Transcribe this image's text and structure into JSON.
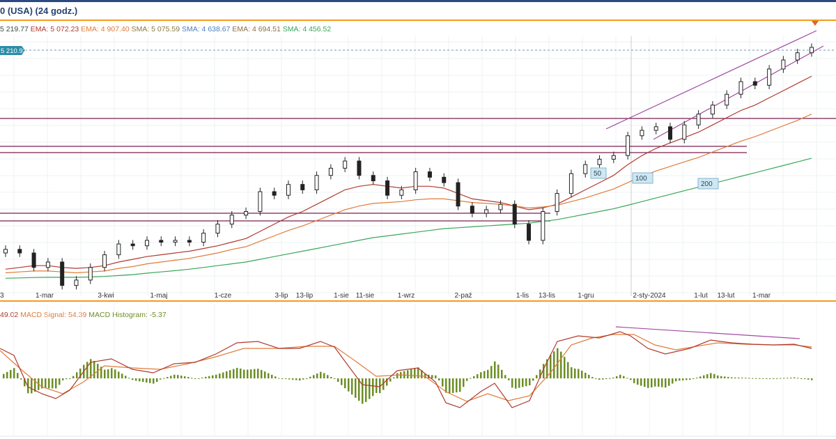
{
  "header": {
    "title": "0 (USA) (24 godz.)"
  },
  "legend": {
    "items": [
      {
        "text": "5 219.77",
        "color": "#3a4a3a"
      },
      {
        "text": "EMA: 5 072.23",
        "color": "#b03a2e"
      },
      {
        "text": "EMA: 4 907.40",
        "color": "#e07b39"
      },
      {
        "text": "SMA: 5 075.59",
        "color": "#8a7a40"
      },
      {
        "text": "SMA: 4 638.67",
        "color": "#4a7fc1"
      },
      {
        "text": "EMA: 4 694.51",
        "color": "#8b6f47"
      },
      {
        "text": "SMA: 4 456.52",
        "color": "#3aa65a"
      }
    ]
  },
  "macd_legend": {
    "items": [
      {
        "text": "49.02",
        "color": "#b03a2e"
      },
      {
        "text": "MACD Signal: 54.39",
        "color": "#e07b39"
      },
      {
        "text": "MACD Histogram: -5.37",
        "color": "#6b8e23"
      }
    ]
  },
  "price_tag": {
    "text": "5 210.93",
    "color": "#2b8da8"
  },
  "ma_labels": [
    {
      "text": "50"
    },
    {
      "text": "100"
    },
    {
      "text": "200"
    }
  ],
  "x_axis": {
    "ticks": [
      "1-mar",
      "3-kwi",
      "1-maj",
      "1-cze",
      "3-lip",
      "13-lip",
      "1-sie",
      "11-sie",
      "1-wrz",
      "2-paź",
      "1-lis",
      "13-lis",
      "1-gru",
      "2-sty-2024",
      "1-lut",
      "13-lut",
      "1-mar"
    ],
    "edge_tick": "3"
  },
  "chart_data": {
    "type": "line",
    "title": "",
    "xlabel": "",
    "ylabel": "",
    "price_series": {
      "name": "",
      "x": [
        "2023-02-10",
        "2023-02-17",
        "2023-02-24",
        "2023-03-03",
        "2023-03-10",
        "2023-03-17",
        "2023-03-24",
        "2023-03-31",
        "2023-04-07",
        "2023-04-14",
        "2023-04-21",
        "2023-04-28",
        "2023-05-05",
        "2023-05-12",
        "2023-05-19",
        "2023-05-26",
        "2023-06-02",
        "2023-06-09",
        "2023-06-16",
        "2023-06-23",
        "2023-06-30",
        "2023-07-07",
        "2023-07-14",
        "2023-07-21",
        "2023-07-28",
        "2023-08-04",
        "2023-08-11",
        "2023-08-18",
        "2023-08-25",
        "2023-09-01",
        "2023-09-08",
        "2023-09-15",
        "2023-09-22",
        "2023-09-29",
        "2023-10-06",
        "2023-10-13",
        "2023-10-20",
        "2023-10-27",
        "2023-11-03",
        "2023-11-10",
        "2023-11-17",
        "2023-11-24",
        "2023-12-01",
        "2023-12-08",
        "2023-12-15",
        "2023-12-22",
        "2023-12-29",
        "2024-01-05",
        "2024-01-12",
        "2024-01-19",
        "2024-01-26",
        "2024-02-02",
        "2024-02-09",
        "2024-02-16",
        "2024-02-23",
        "2024-03-01",
        "2024-03-08",
        "2024-03-15"
      ],
      "values": [
        4090,
        4070,
        3990,
        4020,
        3890,
        3920,
        3990,
        4060,
        4120,
        4110,
        4140,
        4130,
        4140,
        4130,
        4180,
        4230,
        4280,
        4300,
        4410,
        4390,
        4450,
        4420,
        4500,
        4540,
        4580,
        4500,
        4470,
        4390,
        4420,
        4520,
        4490,
        4460,
        4330,
        4290,
        4310,
        4340,
        4230,
        4140,
        4300,
        4400,
        4510,
        4560,
        4590,
        4610,
        4720,
        4750,
        4770,
        4700,
        4780,
        4840,
        4890,
        4950,
        5020,
        5000,
        5090,
        5140,
        5180,
        5210
      ]
    },
    "moving_averages": [
      {
        "label": "50",
        "color": "#b03a2e",
        "values": [
          3980,
          3990,
          4000,
          4000,
          3990,
          3985,
          3990,
          4000,
          4020,
          4035,
          4050,
          4060,
          4070,
          4080,
          4095,
          4110,
          4130,
          4150,
          4190,
          4230,
          4270,
          4300,
          4340,
          4380,
          4420,
          4440,
          4450,
          4440,
          4430,
          4440,
          4440,
          4430,
          4400,
          4370,
          4360,
          4350,
          4330,
          4310,
          4320,
          4340,
          4380,
          4420,
          4460,
          4500,
          4560,
          4610,
          4650,
          4680,
          4710,
          4740,
          4780,
          4820,
          4860,
          4890,
          4930,
          4970,
          5010,
          5050
        ]
      },
      {
        "label": "100",
        "color": "#e07b39",
        "values": [
          3960,
          3965,
          3970,
          3970,
          3965,
          3960,
          3965,
          3970,
          3985,
          3995,
          4010,
          4020,
          4030,
          4040,
          4055,
          4070,
          4090,
          4105,
          4135,
          4165,
          4195,
          4220,
          4250,
          4280,
          4310,
          4330,
          4345,
          4350,
          4355,
          4365,
          4370,
          4370,
          4360,
          4350,
          4345,
          4340,
          4330,
          4320,
          4325,
          4335,
          4355,
          4375,
          4400,
          4425,
          4460,
          4495,
          4525,
          4550,
          4575,
          4600,
          4630,
          4660,
          4690,
          4715,
          4745,
          4775,
          4805,
          4840
        ]
      },
      {
        "label": "200",
        "color": "#3aa65a",
        "values": [
          3930,
          3932,
          3934,
          3935,
          3935,
          3935,
          3937,
          3940,
          3945,
          3950,
          3958,
          3965,
          3972,
          3980,
          3990,
          4000,
          4010,
          4020,
          4035,
          4050,
          4065,
          4080,
          4095,
          4110,
          4125,
          4140,
          4155,
          4165,
          4175,
          4185,
          4195,
          4205,
          4210,
          4215,
          4220,
          4225,
          4230,
          4235,
          4245,
          4255,
          4270,
          4285,
          4300,
          4315,
          4335,
          4355,
          4375,
          4395,
          4415,
          4435,
          4455,
          4475,
          4495,
          4515,
          4535,
          4555,
          4575,
          4595
        ]
      }
    ],
    "macd": {
      "macd_last": 49.02,
      "signal_last": 54.39,
      "histogram_last": -5.37
    },
    "grid": true,
    "legend_position": "top-left"
  },
  "colors": {
    "accent": "#2b4a80",
    "alert": "#f39a1e",
    "channel": "#a04aa0",
    "support": "#7a1f4f"
  }
}
